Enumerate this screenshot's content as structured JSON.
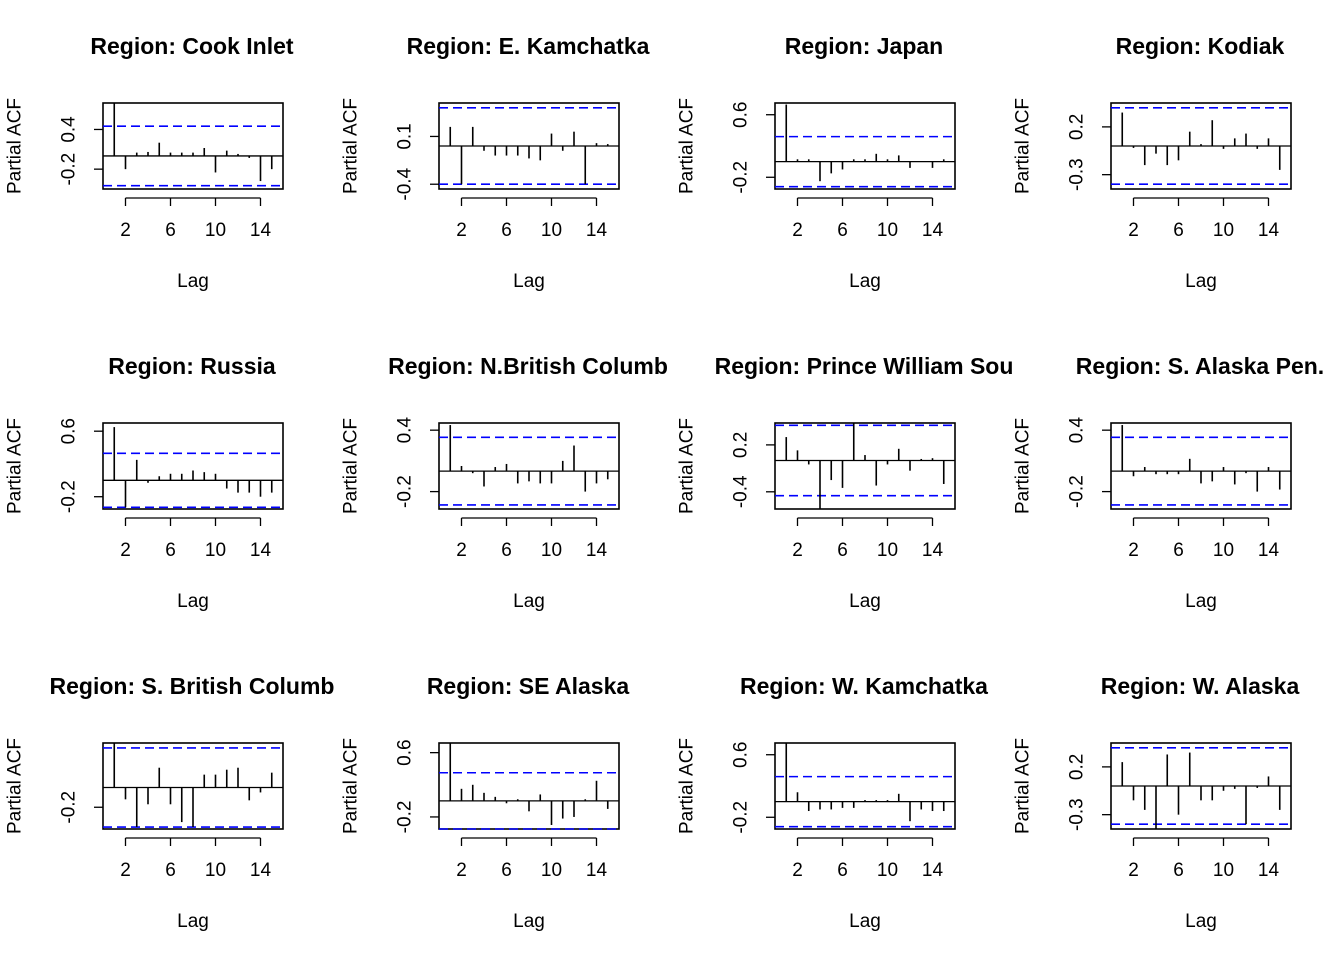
{
  "figure": {
    "xlabel": "Lag",
    "ylabel": "Partial ACF",
    "ci_color": "#0000ff"
  },
  "chart_data": [
    {
      "type": "bar",
      "title": "Region: Cook Inlet",
      "xlabel": "Lag",
      "ylabel": "Partial ACF",
      "xlim": [
        0,
        16
      ],
      "ylim": [
        -0.5,
        0.8
      ],
      "x_ticks": [
        2,
        6,
        10,
        14
      ],
      "y_ticks": [
        -0.2,
        0.4
      ],
      "ci": 0.45,
      "lags": [
        1,
        2,
        3,
        4,
        5,
        6,
        7,
        8,
        9,
        10,
        11,
        12,
        13,
        14,
        15,
        16
      ],
      "values": [
        0.8,
        -0.2,
        0.05,
        0.06,
        0.2,
        0.05,
        0.05,
        0.05,
        0.12,
        -0.25,
        0.08,
        0.03,
        -0.03,
        -0.38,
        -0.2,
        0.0
      ]
    },
    {
      "type": "bar",
      "title": "Region: E. Kamchatka",
      "xlabel": "Lag",
      "ylabel": "Partial ACF",
      "xlim": [
        0,
        16
      ],
      "ylim": [
        -0.45,
        0.45
      ],
      "x_ticks": [
        2,
        6,
        10,
        14
      ],
      "y_ticks": [
        -0.4,
        0.1
      ],
      "ci": 0.4,
      "lags": [
        1,
        2,
        3,
        4,
        5,
        6,
        7,
        8,
        9,
        10,
        11,
        12,
        13,
        14,
        15,
        16
      ],
      "values": [
        0.2,
        -0.4,
        0.2,
        -0.05,
        -0.1,
        -0.1,
        -0.1,
        -0.13,
        -0.15,
        0.13,
        -0.05,
        0.15,
        -0.4,
        0.03,
        0.02,
        0.0
      ]
    },
    {
      "type": "bar",
      "title": "Region: Japan",
      "xlabel": "Lag",
      "ylabel": "Partial ACF",
      "xlim": [
        0,
        16
      ],
      "ylim": [
        -0.35,
        0.75
      ],
      "x_ticks": [
        2,
        6,
        10,
        14
      ],
      "y_ticks": [
        -0.2,
        0.6
      ],
      "ci": 0.32,
      "lags": [
        1,
        2,
        3,
        4,
        5,
        6,
        7,
        8,
        9,
        10,
        11,
        12,
        13,
        14,
        15,
        16
      ],
      "values": [
        0.73,
        0.03,
        0.03,
        -0.25,
        -0.15,
        -0.1,
        0.03,
        0.03,
        0.1,
        0.03,
        0.08,
        -0.08,
        0.0,
        -0.08,
        0.03,
        0.0
      ]
    },
    {
      "type": "bar",
      "title": "Region: Kodiak",
      "xlabel": "Lag",
      "ylabel": "Partial ACF",
      "xlim": [
        0,
        16
      ],
      "ylim": [
        -0.45,
        0.45
      ],
      "x_ticks": [
        2,
        6,
        10,
        14
      ],
      "y_ticks": [
        -0.3,
        0.2
      ],
      "ci": 0.4,
      "lags": [
        1,
        2,
        3,
        4,
        5,
        6,
        7,
        8,
        9,
        10,
        11,
        12,
        13,
        14,
        15,
        16
      ],
      "values": [
        0.35,
        -0.02,
        -0.2,
        -0.08,
        -0.2,
        -0.15,
        0.15,
        0.02,
        0.27,
        -0.03,
        0.08,
        0.13,
        -0.03,
        0.08,
        -0.25,
        0.0
      ]
    },
    {
      "type": "bar",
      "title": "Region: Russia",
      "xlabel": "Lag",
      "ylabel": "Partial ACF",
      "xlim": [
        0,
        16
      ],
      "ylim": [
        -0.35,
        0.7
      ],
      "x_ticks": [
        2,
        6,
        10,
        14
      ],
      "y_ticks": [
        -0.2,
        0.6
      ],
      "ci": 0.33,
      "lags": [
        1,
        2,
        3,
        4,
        5,
        6,
        7,
        8,
        9,
        10,
        11,
        12,
        13,
        14,
        15,
        16
      ],
      "values": [
        0.65,
        -0.33,
        0.25,
        -0.03,
        0.05,
        0.08,
        0.08,
        0.12,
        0.1,
        0.08,
        -0.1,
        -0.15,
        -0.15,
        -0.2,
        -0.15,
        0.0
      ]
    },
    {
      "type": "bar",
      "title": "Region: N.British Columb",
      "xlabel": "Lag",
      "ylabel": "Partial ACF",
      "xlim": [
        0,
        16
      ],
      "ylim": [
        -0.37,
        0.47
      ],
      "x_ticks": [
        2,
        6,
        10,
        14
      ],
      "y_ticks": [
        -0.2,
        0.4
      ],
      "ci": 0.33,
      "lags": [
        1,
        2,
        3,
        4,
        5,
        6,
        7,
        8,
        9,
        10,
        11,
        12,
        13,
        14,
        15,
        16
      ],
      "values": [
        0.45,
        0.05,
        -0.02,
        -0.15,
        0.04,
        0.07,
        -0.12,
        -0.1,
        -0.12,
        -0.12,
        0.1,
        0.25,
        -0.2,
        -0.12,
        -0.08,
        0.0
      ]
    },
    {
      "type": "bar",
      "title": "Region: Prince William Sou",
      "xlabel": "Lag",
      "ylabel": "Partial ACF",
      "xlim": [
        0,
        16
      ],
      "ylim": [
        -0.62,
        0.48
      ],
      "x_ticks": [
        2,
        6,
        10,
        14
      ],
      "y_ticks": [
        -0.4,
        0.2
      ],
      "ci": 0.45,
      "lags": [
        1,
        2,
        3,
        4,
        5,
        6,
        7,
        8,
        9,
        10,
        11,
        12,
        13,
        14,
        15,
        16
      ],
      "values": [
        0.3,
        0.13,
        -0.05,
        -0.62,
        -0.25,
        -0.35,
        0.48,
        0.07,
        -0.32,
        -0.05,
        0.15,
        -0.13,
        0.02,
        0.03,
        -0.3,
        0.0
      ]
    },
    {
      "type": "bar",
      "title": "Region: S. Alaska Pen.",
      "xlabel": "Lag",
      "ylabel": "Partial ACF",
      "xlim": [
        0,
        16
      ],
      "ylim": [
        -0.37,
        0.47
      ],
      "x_ticks": [
        2,
        6,
        10,
        14
      ],
      "y_ticks": [
        -0.2,
        0.4
      ],
      "ci": 0.33,
      "lags": [
        1,
        2,
        3,
        4,
        5,
        6,
        7,
        8,
        9,
        10,
        11,
        12,
        13,
        14,
        15,
        16
      ],
      "values": [
        0.45,
        -0.05,
        0.04,
        -0.03,
        -0.03,
        -0.03,
        0.12,
        -0.12,
        -0.1,
        0.04,
        -0.13,
        -0.02,
        -0.2,
        0.04,
        -0.18,
        0.0
      ]
    },
    {
      "type": "bar",
      "title": "Region: S. British Columb",
      "xlabel": "Lag",
      "ylabel": "Partial ACF",
      "xlim": [
        0,
        16
      ],
      "ylim": [
        -0.42,
        0.45
      ],
      "x_ticks": [
        2,
        6,
        10,
        14
      ],
      "y_ticks": [
        -0.2
      ],
      "ci": 0.4,
      "lags": [
        1,
        2,
        3,
        4,
        5,
        6,
        7,
        8,
        9,
        10,
        11,
        12,
        13,
        14,
        15,
        16
      ],
      "values": [
        0.45,
        -0.12,
        -0.4,
        -0.17,
        0.2,
        -0.17,
        -0.35,
        -0.4,
        0.13,
        0.13,
        0.18,
        0.2,
        -0.13,
        -0.05,
        0.15,
        0.0
      ]
    },
    {
      "type": "bar",
      "title": "Region: SE Alaska",
      "xlabel": "Lag",
      "ylabel": "Partial ACF",
      "xlim": [
        0,
        16
      ],
      "ylim": [
        -0.35,
        0.72
      ],
      "x_ticks": [
        2,
        6,
        10,
        14
      ],
      "y_ticks": [
        -0.2,
        0.6
      ],
      "ci": 0.35,
      "lags": [
        1,
        2,
        3,
        4,
        5,
        6,
        7,
        8,
        9,
        10,
        11,
        12,
        13,
        14,
        15,
        16
      ],
      "values": [
        0.72,
        0.15,
        0.2,
        0.1,
        0.05,
        -0.03,
        0.02,
        -0.13,
        0.08,
        -0.3,
        -0.22,
        -0.2,
        0.02,
        0.25,
        -0.1,
        0.0
      ]
    },
    {
      "type": "bar",
      "title": "Region: W. Kamchatka",
      "xlabel": "Lag",
      "ylabel": "Partial ACF",
      "xlim": [
        0,
        16
      ],
      "ylim": [
        -0.35,
        0.75
      ],
      "x_ticks": [
        2,
        6,
        10,
        14
      ],
      "y_ticks": [
        -0.2,
        0.6
      ],
      "ci": 0.32,
      "lags": [
        1,
        2,
        3,
        4,
        5,
        6,
        7,
        8,
        9,
        10,
        11,
        12,
        13,
        14,
        15,
        16
      ],
      "values": [
        0.75,
        0.12,
        -0.12,
        -0.1,
        -0.1,
        -0.08,
        -0.08,
        0.02,
        0.02,
        0.02,
        0.1,
        -0.25,
        -0.1,
        -0.12,
        -0.12,
        0.0
      ]
    },
    {
      "type": "bar",
      "title": "Region: W. Alaska",
      "xlabel": "Lag",
      "ylabel": "Partial ACF",
      "xlim": [
        0,
        16
      ],
      "ylim": [
        -0.45,
        0.45
      ],
      "x_ticks": [
        2,
        6,
        10,
        14
      ],
      "y_ticks": [
        -0.3,
        0.2
      ],
      "ci": 0.4,
      "lags": [
        1,
        2,
        3,
        4,
        5,
        6,
        7,
        8,
        9,
        10,
        11,
        12,
        13,
        14,
        15,
        16
      ],
      "values": [
        0.25,
        -0.15,
        -0.25,
        -0.45,
        0.33,
        -0.3,
        0.35,
        -0.15,
        -0.15,
        -0.05,
        -0.03,
        -0.4,
        -0.02,
        0.1,
        -0.25,
        0.0
      ]
    }
  ]
}
